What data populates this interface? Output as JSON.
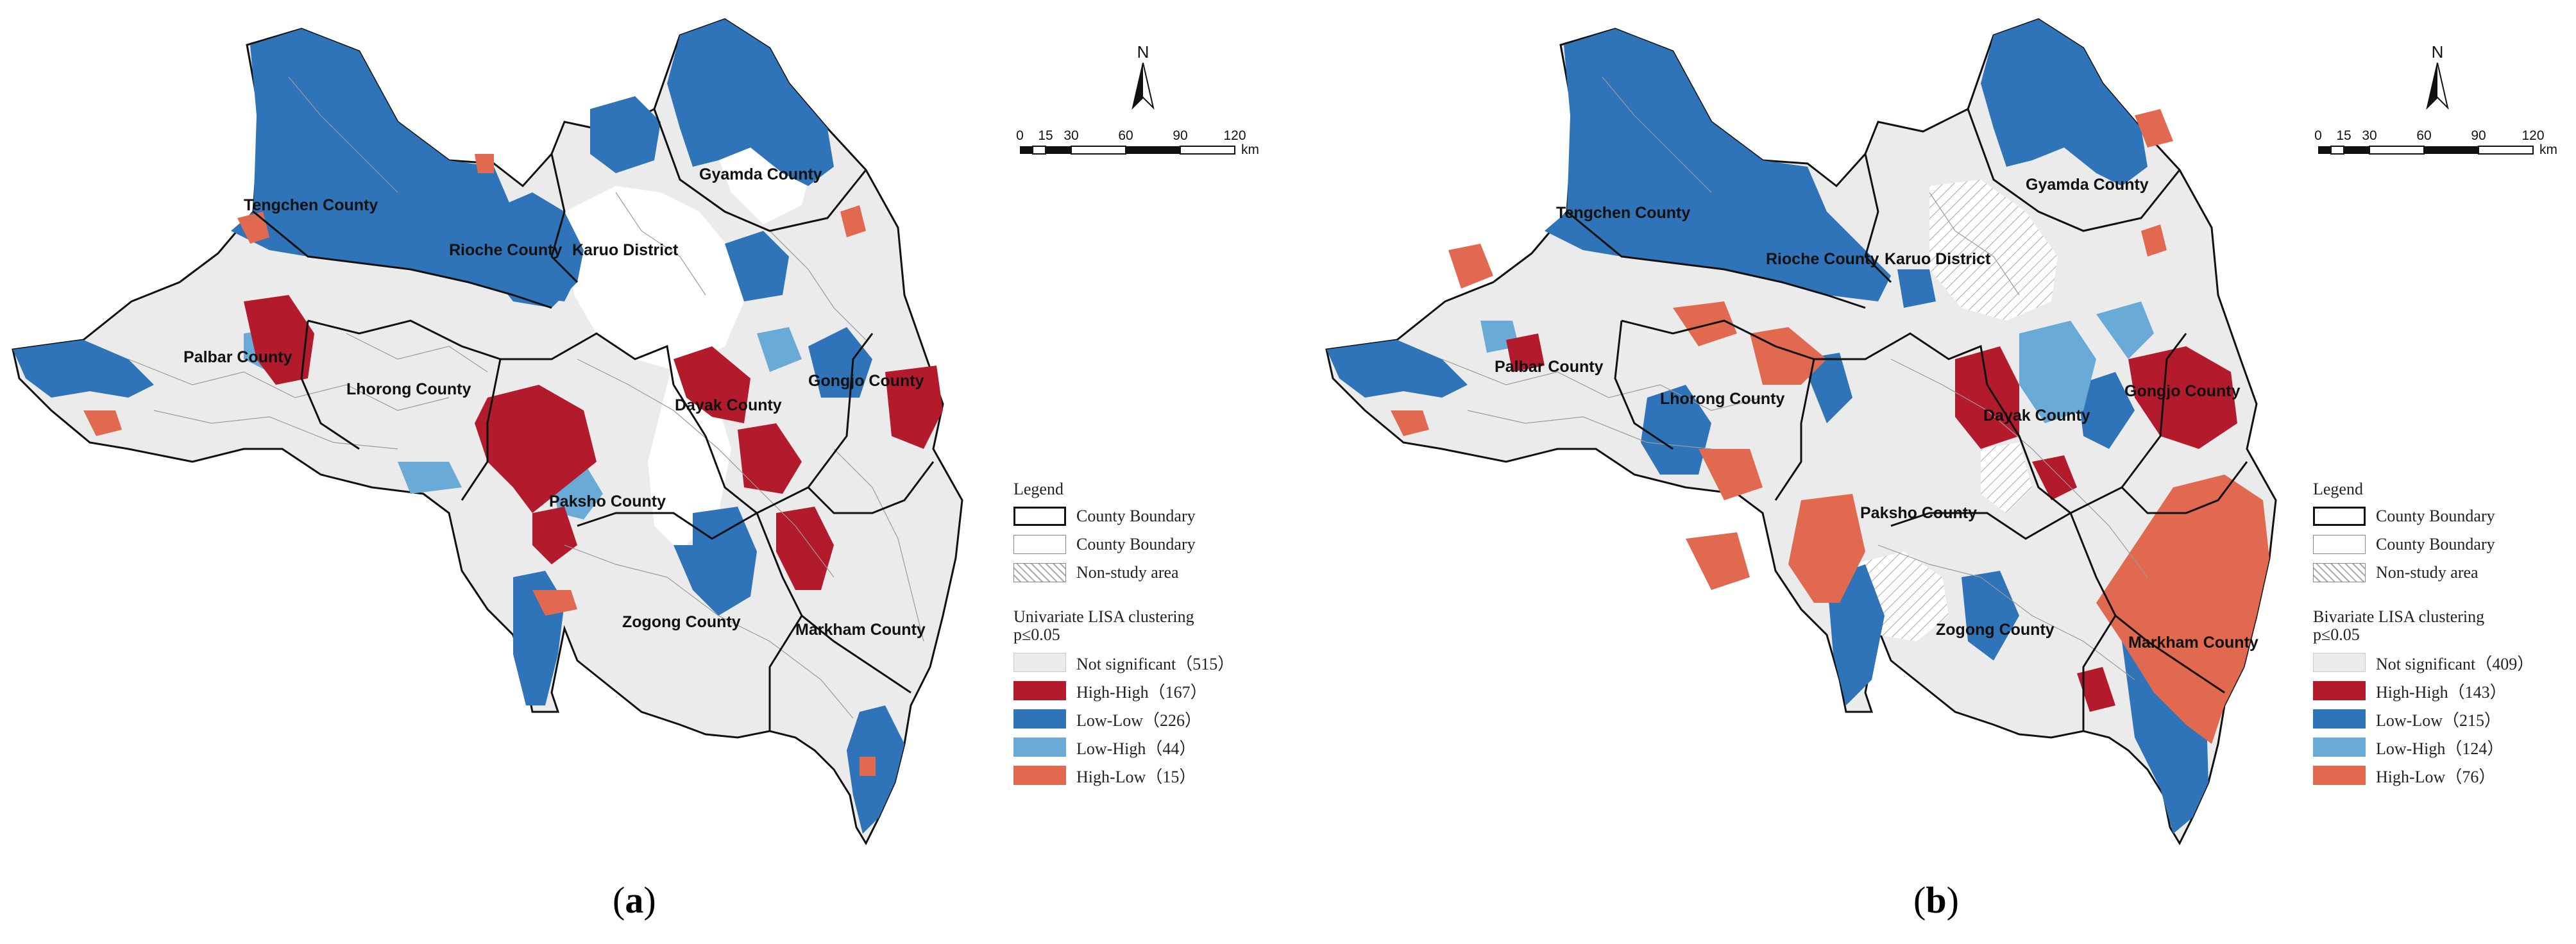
{
  "colors": {
    "not_significant": "#ebebeb",
    "high_high": "#b31b2c",
    "low_low": "#2f74b8",
    "low_high": "#6aaad6",
    "high_low": "#e0694f",
    "boundary": "#111111",
    "inner_line": "#9a9a9a"
  },
  "north_arrow": {
    "label": "N"
  },
  "scale_bar": {
    "ticks": [
      "0",
      "15",
      "30",
      "60",
      "90",
      "120"
    ],
    "unit": "km"
  },
  "counties": [
    "Tengchen County",
    "Rioche County",
    "Karuo District",
    "Gyamda County",
    "Palbar County",
    "Lhorong County",
    "Dayak County",
    "Gongjo County",
    "Paksho County",
    "Zogong County",
    "Markham County"
  ],
  "panels": [
    {
      "caption_open": "(",
      "caption_letter": "a",
      "caption_close": ")",
      "legend": {
        "title": "Legend",
        "boundary_items": [
          "County Boundary",
          "County Boundary",
          "Non-study area"
        ],
        "clustering_title": "Univariate LISA clustering",
        "significance": "p≤0.05",
        "classes": [
          {
            "label": "Not significant（515）",
            "color_key": "not_significant"
          },
          {
            "label": "High-High（167）",
            "color_key": "high_high"
          },
          {
            "label": "Low-Low（226）",
            "color_key": "low_low"
          },
          {
            "label": "Low-High（44）",
            "color_key": "low_high"
          },
          {
            "label": "High-Low（15）",
            "color_key": "high_low"
          }
        ]
      }
    },
    {
      "caption_open": "(",
      "caption_letter": "b",
      "caption_close": ")",
      "legend": {
        "title": "Legend",
        "boundary_items": [
          "County Boundary",
          "County Boundary",
          "Non-study area"
        ],
        "clustering_title": "Bivariate LISA clustering",
        "significance": "p≤0.05",
        "classes": [
          {
            "label": "Not significant（409）",
            "color_key": "not_significant"
          },
          {
            "label": "High-High（143）",
            "color_key": "high_high"
          },
          {
            "label": "Low-Low（215）",
            "color_key": "low_low"
          },
          {
            "label": "Low-High（124）",
            "color_key": "low_high"
          },
          {
            "label": "High-Low（76）",
            "color_key": "high_low"
          }
        ]
      }
    }
  ]
}
